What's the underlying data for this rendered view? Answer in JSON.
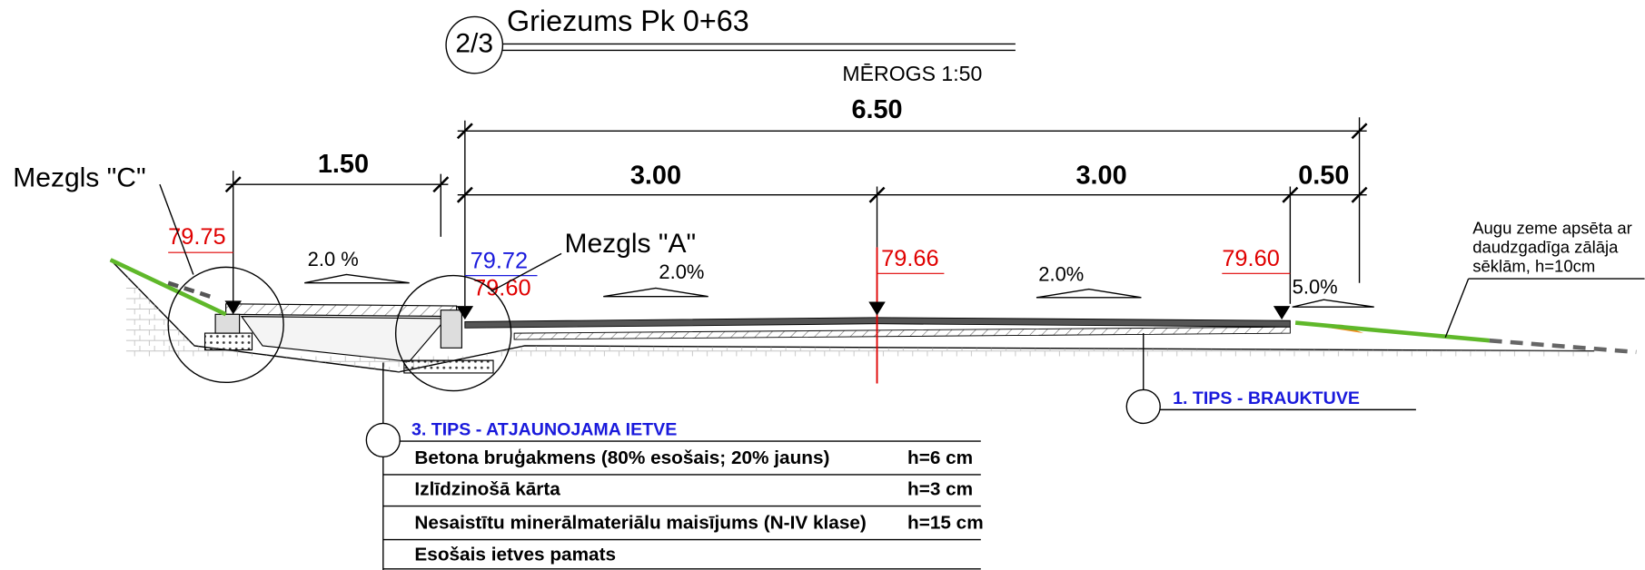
{
  "title": {
    "number": "2/3",
    "text": "Griezums Pk 0+63",
    "scale": "MĒROGS 1:50"
  },
  "dimensions": [
    "6.50",
    "1.50",
    "3.00",
    "3.00",
    "0.50"
  ],
  "nodes": [
    {
      "label": "Mezgls \"C\""
    },
    {
      "label": "Mezgls \"A\""
    }
  ],
  "elevations": [
    "79.75",
    "79.72",
    "79.60",
    "79.66",
    "79.60"
  ],
  "slopes": [
    "2.0 %",
    "2.0%",
    "2.0%",
    "5.0%"
  ],
  "note": [
    "Augu zeme apsēta ar",
    "daudzgadīga zālāja",
    "sēklām, h=10cm"
  ],
  "types": [
    {
      "label": "1. TIPS - BRAUKTUVE"
    },
    {
      "label": "3. TIPS - ATJAUNOJAMA IETVE",
      "layers": [
        [
          "Betona bruģakmens (80% esošais; 20% jauns)",
          "h=6 cm"
        ],
        [
          "Izlīdzinošā kārta",
          "h=3 cm"
        ],
        [
          "Nesaistītu minerālmateriālu maisījums (N-IV klase)",
          "h=15 cm"
        ],
        [
          "Esošais ietves pamats"
        ]
      ]
    }
  ]
}
